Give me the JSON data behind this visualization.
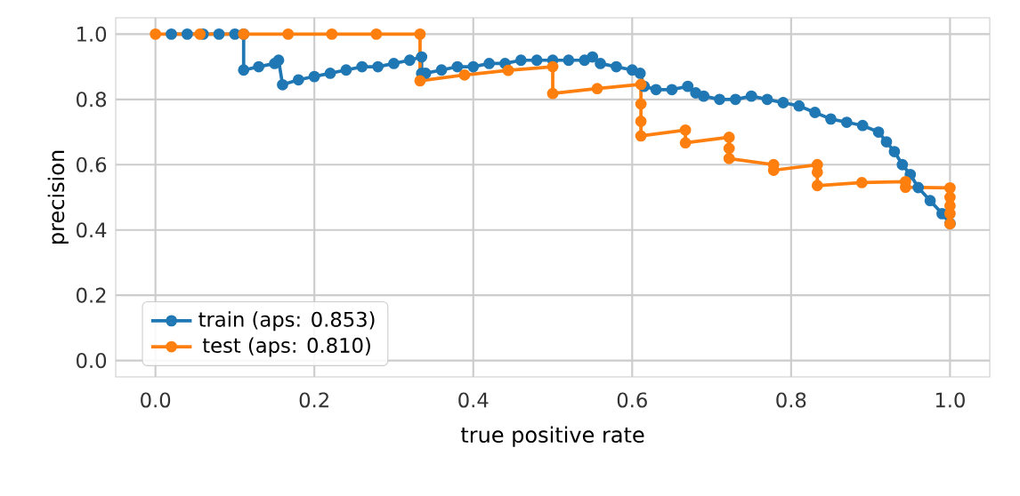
{
  "chart_data": {
    "type": "line",
    "xlabel": "true positive rate",
    "ylabel": "precision",
    "xlim": [
      -0.05,
      1.05
    ],
    "ylim": [
      -0.05,
      1.05
    ],
    "xticks": [
      {
        "value": 0,
        "label": "0.0"
      },
      0.2,
      0.4,
      0.6,
      0.8,
      {
        "value": 1,
        "label": "1.0"
      }
    ],
    "yticks": [
      {
        "value": 0,
        "label": "0.0"
      },
      0.2,
      0.4,
      0.6,
      0.8,
      {
        "value": 1,
        "label": "1.0"
      }
    ],
    "grid": true,
    "legend": "bottom left",
    "marker": "circle",
    "line_style": "solid",
    "series": [
      {
        "name": "train (aps: 0.853)",
        "color": "#1f77b4",
        "x": [
          0.02,
          0.04,
          0.06,
          0.08,
          0.1,
          0.111,
          0.111,
          0.13,
          0.15,
          0.155,
          0.16,
          0.18,
          0.2,
          0.22,
          0.24,
          0.26,
          0.28,
          0.3,
          0.32,
          0.335,
          0.335,
          0.34,
          0.36,
          0.38,
          0.4,
          0.42,
          0.44,
          0.46,
          0.48,
          0.5,
          0.52,
          0.54,
          0.55,
          0.56,
          0.58,
          0.6,
          0.61,
          0.615,
          0.63,
          0.65,
          0.67,
          0.68,
          0.69,
          0.71,
          0.73,
          0.75,
          0.77,
          0.79,
          0.81,
          0.83,
          0.85,
          0.87,
          0.89,
          0.91,
          0.92,
          0.93,
          0.94,
          0.95,
          0.96,
          0.975,
          0.99,
          1.0
        ],
        "values": [
          1,
          1,
          1,
          1,
          1,
          1,
          0.89,
          0.9,
          0.91,
          0.92,
          0.845,
          0.86,
          0.87,
          0.88,
          0.89,
          0.9,
          0.9,
          0.91,
          0.92,
          0.93,
          0.88,
          0.88,
          0.89,
          0.9,
          0.9,
          0.91,
          0.91,
          0.92,
          0.92,
          0.92,
          0.92,
          0.92,
          0.93,
          0.91,
          0.9,
          0.89,
          0.88,
          0.84,
          0.83,
          0.83,
          0.84,
          0.82,
          0.81,
          0.8,
          0.8,
          0.81,
          0.8,
          0.79,
          0.78,
          0.76,
          0.74,
          0.73,
          0.72,
          0.7,
          0.67,
          0.64,
          0.6,
          0.57,
          0.53,
          0.49,
          0.45,
          0.42
        ]
      },
      {
        "name": "test (aps: 0.810)",
        "color": "#ff7f0e",
        "x": [
          0,
          0.056,
          0.111,
          0.167,
          0.222,
          0.278,
          0.333,
          0.333,
          0.389,
          0.444,
          0.5,
          0.5,
          0.556,
          0.611,
          0.611,
          0.611,
          0.611,
          0.667,
          0.667,
          0.722,
          0.722,
          0.722,
          0.778,
          0.778,
          0.833,
          0.833,
          0.833,
          0.889,
          0.944,
          0.944,
          1.0,
          1.0,
          1.0,
          1.0,
          1.0
        ],
        "values": [
          1,
          1,
          1,
          1,
          1,
          1,
          1,
          0.857,
          0.875,
          0.889,
          0.9,
          0.818,
          0.833,
          0.846,
          0.786,
          0.733,
          0.688,
          0.706,
          0.667,
          0.684,
          0.65,
          0.619,
          0.6,
          0.583,
          0.6,
          0.577,
          0.536,
          0.545,
          0.548,
          0.531,
          0.529,
          0.5,
          0.474,
          0.45,
          0.419
        ]
      }
    ]
  }
}
